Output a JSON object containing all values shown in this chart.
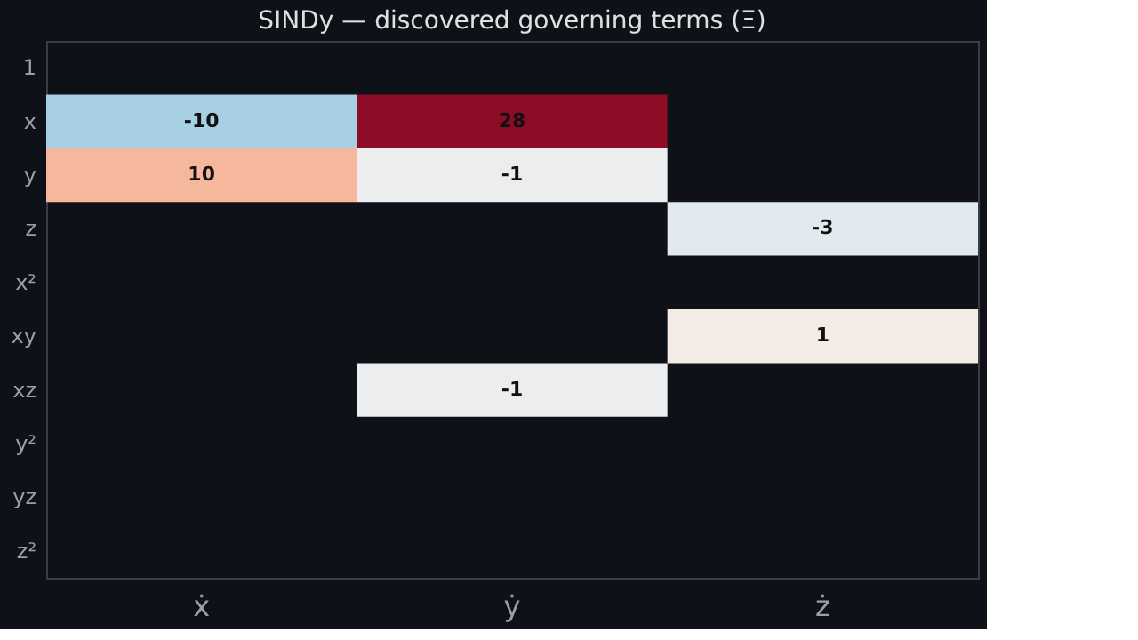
{
  "chart_data": {
    "type": "heatmap",
    "title": "SINDy — discovered governing terms (Ξ)",
    "categories": [
      "ẋ",
      "ẏ",
      "ż"
    ],
    "y_categories": [
      "1",
      "x",
      "y",
      "z",
      "x²",
      "xy",
      "xz",
      "y²",
      "yz",
      "z²"
    ],
    "cells": [
      [
        null,
        null,
        null
      ],
      [
        -10,
        28,
        null
      ],
      [
        10,
        -1,
        null
      ],
      [
        null,
        null,
        -3
      ],
      [
        null,
        null,
        null
      ],
      [
        null,
        null,
        1
      ],
      [
        null,
        -1,
        null
      ],
      [
        null,
        null,
        null
      ],
      [
        null,
        null,
        null
      ],
      [
        null,
        null,
        null
      ]
    ],
    "data_labels": true
  }
}
